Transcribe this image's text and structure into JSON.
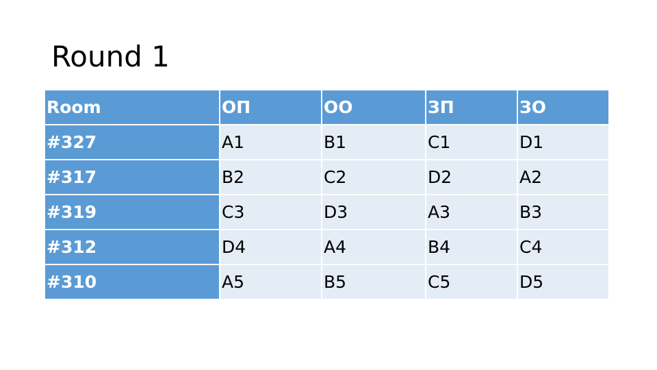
{
  "title": "Round 1",
  "table": {
    "header": [
      "Room",
      "ОП",
      "ОО",
      "ЗП",
      "ЗО"
    ],
    "rows": [
      [
        "#327",
        "A1",
        "B1",
        "C1",
        "D1"
      ],
      [
        "#317",
        "B2",
        "C2",
        "D2",
        "A2"
      ],
      [
        "#319",
        "C3",
        "D3",
        "A3",
        "B3"
      ],
      [
        "#312",
        "D4",
        "A4",
        "B4",
        "C4"
      ],
      [
        "#310",
        "A5",
        "B5",
        "C5",
        "D5"
      ]
    ]
  }
}
